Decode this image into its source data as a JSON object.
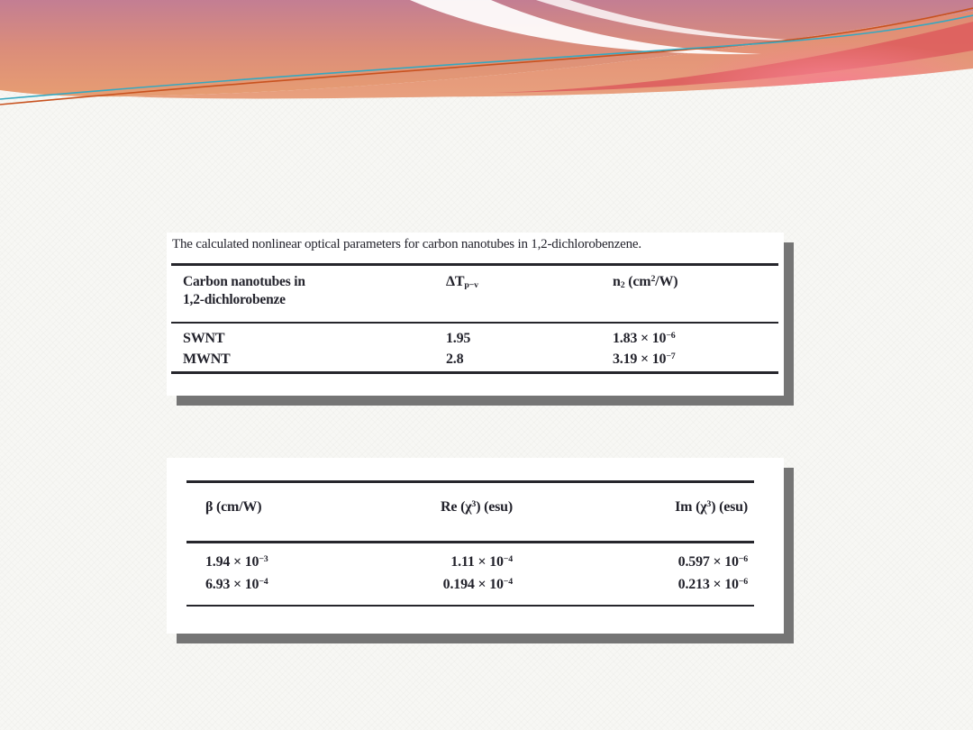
{
  "theme": {
    "background": "#f7f7f4",
    "wave_rose": "#c27e93",
    "wave_salmon": "#e49577",
    "wave_deep_pink": "#dd5f5e",
    "wave_glow_pink": "#f5808f",
    "thin_line_orange": "#c8521f",
    "thin_line_teal": "#36a8c0",
    "image_shadow_gray": "#757575",
    "table_text_color": "#23232c"
  },
  "table1": {
    "caption": "The calculated nonlinear optical parameters for carbon nanotubes in 1,2-dichlorobenzene.",
    "columns": [
      "Carbon nanotubes in\n1,2-dichlorobenze",
      "ΔT_{p−v}",
      "n_{2} (cm^{2}/W)"
    ],
    "rows": [
      [
        "SWNT",
        "1.95",
        "1.83 × 10^{−6}"
      ],
      [
        "MWNT",
        "2.8",
        "3.19 × 10^{−7}"
      ]
    ]
  },
  "table2": {
    "columns": [
      "β (cm/W)",
      "Re (χ^{3}) (esu)",
      "Im (χ^{3}) (esu)"
    ],
    "rows": [
      [
        "1.94 × 10^{−3}",
        "1.11 × 10^{−4}",
        "0.597 × 10^{−6}"
      ],
      [
        "6.93 × 10^{−4}",
        "0.194 × 10^{−4}",
        "0.213 × 10^{−6}"
      ]
    ]
  }
}
